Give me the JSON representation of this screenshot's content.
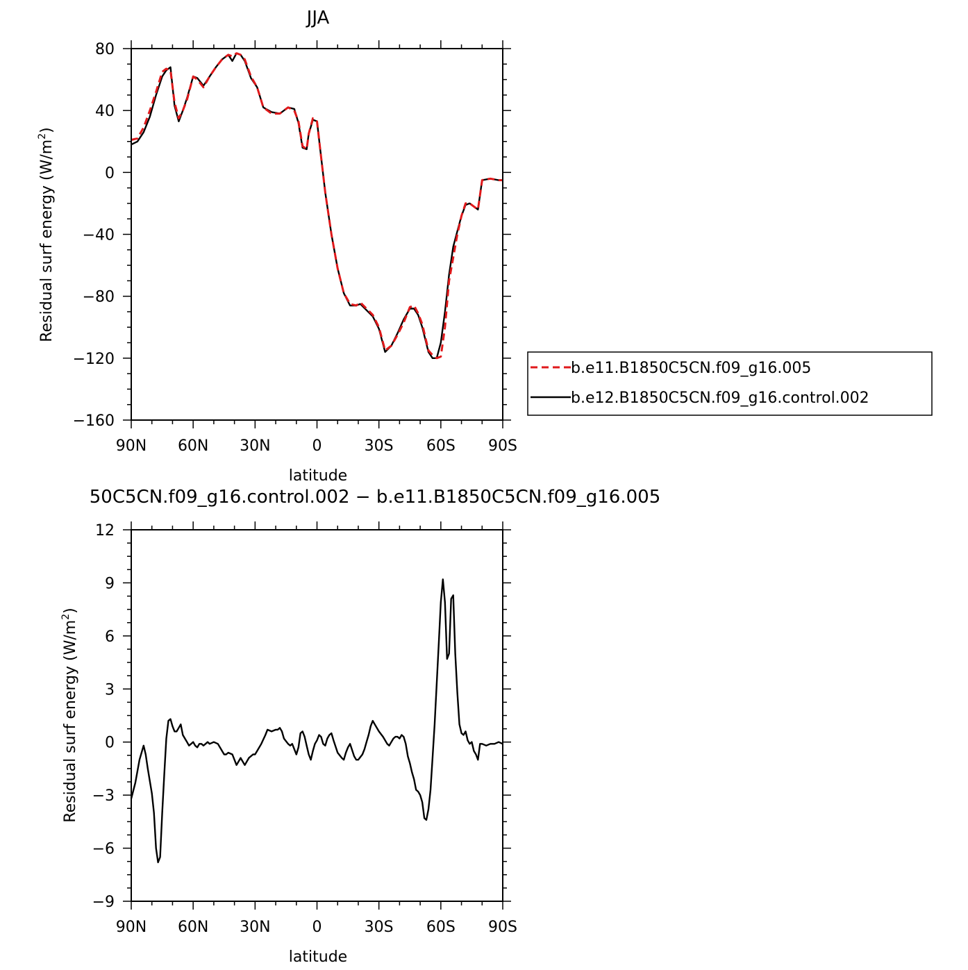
{
  "chart_data": [
    {
      "type": "line",
      "title": "JJA",
      "xlabel": "latitude",
      "ylabel": "Residual surf energy (W/m²)",
      "ylabel_main": "Residual surf energy (W/m",
      "ylabel_sup": "2",
      "ylabel_end": ")",
      "xlim": [
        90,
        -90
      ],
      "ylim": [
        -160,
        80
      ],
      "xticks": [
        {
          "value": 90,
          "label": "90N"
        },
        {
          "value": 60,
          "label": "60N"
        },
        {
          "value": 30,
          "label": "30N"
        },
        {
          "value": 0,
          "label": "0"
        },
        {
          "value": -30,
          "label": "30S"
        },
        {
          "value": -60,
          "label": "60S"
        },
        {
          "value": -90,
          "label": "90S"
        }
      ],
      "yticks": [
        {
          "value": 80,
          "label": "80"
        },
        {
          "value": 40,
          "label": "40"
        },
        {
          "value": 0,
          "label": "0"
        },
        {
          "value": -40,
          "label": "−40"
        },
        {
          "value": -80,
          "label": "−80"
        },
        {
          "value": -120,
          "label": "−120"
        },
        {
          "value": -160,
          "label": "−160"
        }
      ],
      "legend": "right",
      "series": [
        {
          "name": "b.e11.B1850C5CN.f09_g16.005",
          "color": "#e0191b",
          "dash": "dashed",
          "x": [
            90,
            87,
            84,
            81,
            78,
            75,
            73,
            71,
            69,
            67,
            65,
            63,
            60,
            58,
            55,
            52,
            49,
            46,
            43,
            41,
            39,
            37,
            35,
            32,
            29,
            26,
            22,
            18,
            14,
            11,
            9,
            7,
            5,
            4,
            2,
            0,
            -2,
            -4,
            -7,
            -10,
            -13,
            -16,
            -19,
            -21,
            -24,
            -27,
            -30,
            -33,
            -36,
            -39,
            -42,
            -45,
            -47,
            -49,
            -51,
            -54,
            -56,
            -58,
            -60,
            -62,
            -64,
            -66,
            -68,
            -70,
            -72,
            -74,
            -76,
            -78,
            -80,
            -84,
            -88,
            -90
          ],
          "y": [
            21,
            22,
            29,
            40,
            52,
            65,
            67,
            66,
            45,
            35,
            40,
            47,
            62,
            60,
            55,
            62,
            68,
            73,
            76,
            75,
            77,
            76,
            73,
            62,
            55,
            42,
            38,
            38,
            42,
            40,
            33,
            17,
            15,
            25,
            35,
            33,
            10,
            -13,
            -40,
            -62,
            -78,
            -85,
            -86,
            -84,
            -88,
            -92,
            -100,
            -115,
            -112,
            -105,
            -97,
            -87,
            -86,
            -91,
            -98,
            -115,
            -118,
            -120,
            -119,
            -100,
            -70,
            -55,
            -40,
            -28,
            -20,
            -20,
            -22,
            -24,
            -5,
            -4,
            -5,
            -5
          ]
        },
        {
          "name": "b.e12.B1850C5CN.f09_g16.control.002",
          "color": "#000000",
          "dash": "solid",
          "x": [
            90,
            87,
            84,
            81,
            78,
            75,
            73,
            71,
            69,
            67,
            65,
            63,
            60,
            58,
            55,
            52,
            49,
            46,
            43,
            41,
            39,
            37,
            35,
            32,
            29,
            26,
            22,
            18,
            14,
            11,
            9,
            7,
            5,
            4,
            2,
            0,
            -2,
            -4,
            -7,
            -10,
            -13,
            -16,
            -19,
            -21,
            -24,
            -27,
            -30,
            -33,
            -36,
            -39,
            -42,
            -45,
            -47,
            -49,
            -51,
            -54,
            -56,
            -58,
            -60,
            -62,
            -64,
            -66,
            -68,
            -70,
            -72,
            -74,
            -76,
            -78,
            -80,
            -84,
            -88,
            -90
          ],
          "y": [
            18,
            20,
            26,
            36,
            50,
            62,
            66,
            68,
            43,
            33,
            40,
            48,
            62,
            61,
            56,
            62,
            68,
            73,
            76,
            72,
            77,
            76,
            72,
            61,
            55,
            42,
            39,
            38,
            42,
            41,
            32,
            16,
            15,
            25,
            34,
            33,
            10,
            -13,
            -40,
            -62,
            -78,
            -86,
            -86,
            -85,
            -89,
            -93,
            -101,
            -116,
            -112,
            -104,
            -95,
            -88,
            -88,
            -92,
            -100,
            -116,
            -120,
            -120,
            -110,
            -90,
            -66,
            -48,
            -38,
            -28,
            -21,
            -20,
            -22,
            -24,
            -5,
            -4,
            -5,
            -5
          ]
        }
      ]
    },
    {
      "type": "line",
      "title": "50C5CN.f09_g16.control.002 − b.e11.B1850C5CN.f09_g16.005",
      "xlabel": "latitude",
      "ylabel": "Residual surf energy (W/m²)",
      "ylabel_main": "Residual surf energy (W/m",
      "ylabel_sup": "2",
      "ylabel_end": ")",
      "xlim": [
        90,
        -90
      ],
      "ylim": [
        -9,
        12
      ],
      "xticks": [
        {
          "value": 90,
          "label": "90N"
        },
        {
          "value": 60,
          "label": "60N"
        },
        {
          "value": 30,
          "label": "30N"
        },
        {
          "value": 0,
          "label": "0"
        },
        {
          "value": -30,
          "label": "30S"
        },
        {
          "value": -60,
          "label": "60S"
        },
        {
          "value": -90,
          "label": "90S"
        }
      ],
      "yticks": [
        {
          "value": 12,
          "label": "12"
        },
        {
          "value": 9,
          "label": "9"
        },
        {
          "value": 6,
          "label": "6"
        },
        {
          "value": 3,
          "label": "3"
        },
        {
          "value": 0,
          "label": "0"
        },
        {
          "value": -3,
          "label": "−3"
        },
        {
          "value": -6,
          "label": "−6"
        },
        {
          "value": -9,
          "label": "−9"
        }
      ],
      "series": [
        {
          "color": "#000000",
          "dash": "solid",
          "x": [
            90,
            88,
            86,
            84,
            83,
            82,
            80,
            79,
            78,
            77,
            76,
            75,
            74,
            73,
            72,
            71,
            70,
            69,
            68,
            67,
            66,
            65,
            64,
            63,
            62,
            61,
            60,
            59,
            58,
            57,
            56,
            55,
            54,
            53,
            52,
            50,
            48,
            46,
            45,
            44,
            43,
            41,
            40,
            39,
            37,
            35,
            33,
            31,
            30,
            29,
            27,
            25,
            24,
            22,
            20,
            19,
            18,
            17,
            16,
            14,
            13,
            12,
            11,
            10,
            9,
            8,
            7,
            6,
            5,
            4,
            3,
            2,
            1,
            0,
            -1,
            -2,
            -3,
            -4,
            -5,
            -6,
            -7,
            -8,
            -10,
            -12,
            -13,
            -14,
            -15,
            -16,
            -18,
            -19,
            -20,
            -22,
            -23,
            -24,
            -25,
            -26,
            -27,
            -28,
            -30,
            -32,
            -34,
            -35,
            -36,
            -37,
            -38,
            -39,
            -40,
            -41,
            -42,
            -43,
            -44,
            -45,
            -46,
            -47,
            -48,
            -49,
            -50,
            -51,
            -52,
            -53,
            -54,
            -55,
            -56,
            -57,
            -58,
            -59,
            -60,
            -61,
            -62,
            -63,
            -64,
            -65,
            -66,
            -67,
            -68,
            -69,
            -70,
            -71,
            -72,
            -73,
            -74,
            -75,
            -76,
            -77,
            -78,
            -79,
            -80,
            -82,
            -84,
            -86,
            -88,
            -90
          ],
          "y": [
            -3.2,
            -2.3,
            -1.0,
            -0.2,
            -0.7,
            -1.5,
            -2.9,
            -4.0,
            -6.0,
            -6.8,
            -6.5,
            -4.0,
            -1.8,
            0.2,
            1.2,
            1.3,
            0.9,
            0.6,
            0.6,
            0.8,
            1.0,
            0.4,
            0.2,
            0.0,
            -0.2,
            -0.1,
            0.0,
            -0.2,
            -0.3,
            -0.1,
            -0.1,
            -0.2,
            -0.1,
            0.0,
            -0.1,
            0.0,
            -0.1,
            -0.5,
            -0.7,
            -0.7,
            -0.6,
            -0.7,
            -1.0,
            -1.3,
            -0.9,
            -1.3,
            -0.9,
            -0.7,
            -0.7,
            -0.5,
            -0.1,
            0.4,
            0.7,
            0.6,
            0.7,
            0.7,
            0.8,
            0.6,
            0.2,
            -0.1,
            -0.2,
            -0.1,
            -0.4,
            -0.7,
            -0.3,
            0.5,
            0.6,
            0.3,
            -0.2,
            -0.7,
            -1.0,
            -0.5,
            -0.1,
            0.1,
            0.4,
            0.3,
            -0.1,
            -0.2,
            0.2,
            0.4,
            0.5,
            0.1,
            -0.6,
            -0.9,
            -1.0,
            -0.6,
            -0.3,
            -0.1,
            -0.8,
            -1.0,
            -1.0,
            -0.7,
            -0.4,
            0.0,
            0.4,
            0.9,
            1.2,
            1.0,
            0.6,
            0.3,
            -0.1,
            -0.2,
            0.0,
            0.2,
            0.3,
            0.3,
            0.2,
            0.4,
            0.3,
            -0.1,
            -0.8,
            -1.2,
            -1.7,
            -2.1,
            -2.7,
            -2.8,
            -3.0,
            -3.4,
            -4.3,
            -4.4,
            -3.8,
            -2.7,
            -0.9,
            1.0,
            3.3,
            5.6,
            7.9,
            9.2,
            7.9,
            4.7,
            5.0,
            8.1,
            8.3,
            5.0,
            2.8,
            1.0,
            0.5,
            0.4,
            0.6,
            0.1,
            -0.1,
            0.0,
            -0.5,
            -0.7,
            -1.0,
            -0.1,
            -0.1,
            -0.2,
            -0.1,
            -0.1,
            0.0,
            -0.1
          ]
        }
      ]
    }
  ]
}
